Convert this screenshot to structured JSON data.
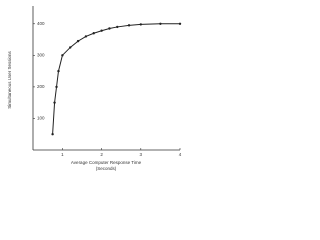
{
  "chart_data": {
    "type": "line",
    "x_label": [
      "Average Computer Response Time",
      "(Seconds)"
    ],
    "y_label": "Simultaneous User Sessions",
    "x": [
      0.75,
      0.8,
      0.85,
      0.9,
      1.0,
      1.2,
      1.4,
      1.6,
      1.8,
      2.0,
      2.2,
      2.4,
      2.7,
      3.0,
      3.5,
      4.0
    ],
    "series": [
      {
        "color": "#222222",
        "values": [
          50,
          150,
          200,
          250,
          300,
          325,
          345,
          360,
          370,
          378,
          385,
          390,
          395,
          398,
          400,
          400
        ]
      }
    ],
    "xlim": [
      0.25,
      4
    ],
    "ylim": [
      0,
      450
    ],
    "xticks": [
      1,
      2,
      3,
      4
    ],
    "yticks": [
      100,
      200,
      300,
      400
    ],
    "grid": false
  }
}
